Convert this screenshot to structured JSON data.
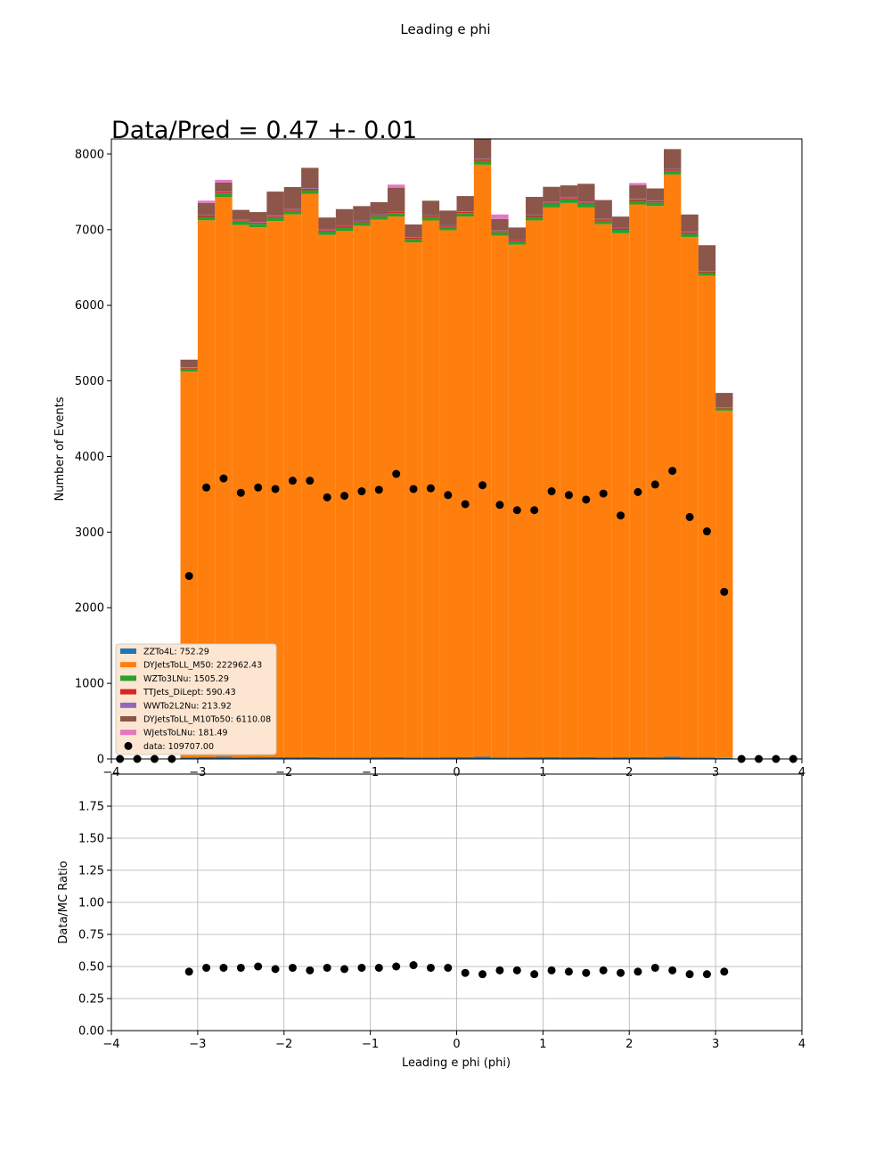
{
  "figure": {
    "suptitle": "Leading e phi",
    "annotation": "Data/Pred = 0.47 +- 0.01"
  },
  "chart_data": [
    {
      "type": "bar",
      "stacked": true,
      "ylabel": "Number of Events",
      "xlim": [
        -4,
        4
      ],
      "ylim": [
        0,
        8200
      ],
      "xticks": [
        "−4",
        "−3",
        "−2",
        "−1",
        "0",
        "1",
        "2",
        "3",
        "4"
      ],
      "yticks": [
        "0",
        "1000",
        "2000",
        "3000",
        "4000",
        "5000",
        "6000",
        "7000",
        "8000"
      ],
      "legend_position": "lower-left",
      "bin_edges": [
        -3.2,
        -3.0,
        -2.8,
        -2.6,
        -2.4,
        -2.2,
        -2.0,
        -1.8,
        -1.6,
        -1.4,
        -1.2,
        -1.0,
        -0.8,
        -0.6,
        -0.4,
        -0.2,
        0.0,
        0.2,
        0.4,
        0.6,
        0.8,
        1.0,
        1.2,
        1.4,
        1.6,
        1.8,
        2.0,
        2.2,
        2.4,
        2.6,
        2.8,
        3.0,
        3.2
      ],
      "series": [
        {
          "name": "ZZTo4L: 752.29",
          "color": "#1f77b4",
          "values": [
            22,
            24,
            30,
            22,
            23,
            24,
            23,
            24,
            22,
            22,
            22,
            23,
            24,
            22,
            22,
            23,
            24,
            30,
            22,
            22,
            23,
            24,
            23,
            24,
            22,
            23,
            24,
            23,
            30,
            22,
            22,
            15
          ]
        },
        {
          "name": "DYJetsToLL_M50: 222962.43",
          "color": "#ff7f0e",
          "values": [
            5100,
            7100,
            7400,
            7040,
            7010,
            7090,
            7180,
            7450,
            6910,
            6960,
            7030,
            7110,
            7150,
            6810,
            7100,
            6970,
            7150,
            7830,
            6900,
            6780,
            7100,
            7270,
            7330,
            7270,
            7050,
            6930,
            7310,
            7290,
            7700,
            6880,
            6370,
            4590
          ]
        },
        {
          "name": "WZTo3LNu: 1505.29",
          "color": "#2ca02c",
          "values": [
            40,
            45,
            48,
            45,
            45,
            45,
            46,
            48,
            44,
            45,
            45,
            46,
            46,
            44,
            46,
            45,
            46,
            50,
            44,
            44,
            46,
            47,
            47,
            47,
            45,
            45,
            47,
            47,
            49,
            44,
            41,
            30
          ]
        },
        {
          "name": "TTJets_DiLept: 590.43",
          "color": "#d62728",
          "values": [
            14,
            18,
            19,
            18,
            18,
            18,
            18,
            19,
            18,
            18,
            18,
            18,
            19,
            17,
            18,
            18,
            18,
            20,
            18,
            17,
            18,
            19,
            19,
            19,
            18,
            18,
            19,
            19,
            20,
            18,
            16,
            12
          ]
        },
        {
          "name": "WWTo2L2Nu: 213.92",
          "color": "#9467bd",
          "values": [
            5,
            7,
            7,
            7,
            7,
            7,
            7,
            7,
            7,
            7,
            7,
            7,
            7,
            6,
            7,
            7,
            7,
            7,
            7,
            6,
            7,
            7,
            7,
            7,
            7,
            7,
            7,
            7,
            7,
            7,
            6,
            4
          ]
        },
        {
          "name": "DYJetsToLL_M10To50: 6110.08",
          "color": "#8c564b",
          "values": [
            100,
            160,
            120,
            130,
            130,
            320,
            290,
            270,
            160,
            220,
            190,
            160,
            310,
            170,
            190,
            190,
            200,
            270,
            150,
            160,
            240,
            200,
            160,
            240,
            250,
            150,
            180,
            160,
            260,
            230,
            340,
            190
          ]
        },
        {
          "name": "WJetsToLNu: 181.49",
          "color": "#e377c2",
          "values": [
            0,
            30,
            35,
            0,
            0,
            0,
            0,
            0,
            0,
            0,
            0,
            0,
            40,
            0,
            0,
            0,
            0,
            0,
            60,
            0,
            0,
            0,
            0,
            0,
            0,
            0,
            30,
            0,
            0,
            0,
            0,
            0
          ]
        }
      ],
      "data_series": {
        "name": "data: 109707.00",
        "color": "#000000",
        "x": [
          -3.9,
          -3.7,
          -3.5,
          -3.3,
          -3.1,
          -2.9,
          -2.7,
          -2.5,
          -2.3,
          -2.1,
          -1.9,
          -1.7,
          -1.5,
          -1.3,
          -1.1,
          -0.9,
          -0.7,
          -0.5,
          -0.3,
          -0.1,
          0.1,
          0.3,
          0.5,
          0.7,
          0.9,
          1.1,
          1.3,
          1.5,
          1.7,
          1.9,
          2.1,
          2.3,
          2.5,
          2.7,
          2.9,
          3.1,
          3.3,
          3.5,
          3.7,
          3.9
        ],
        "y": [
          0,
          0,
          0,
          0,
          2420,
          3590,
          3710,
          3520,
          3590,
          3570,
          3680,
          3680,
          3460,
          3480,
          3540,
          3560,
          3770,
          3570,
          3580,
          3490,
          3370,
          3620,
          3360,
          3290,
          3290,
          3540,
          3490,
          3430,
          3510,
          3220,
          3530,
          3630,
          3810,
          3200,
          3010,
          2210,
          0,
          0,
          0,
          0
        ]
      }
    },
    {
      "type": "scatter",
      "xlabel": "Leading e phi (phi)",
      "ylabel": "Data/MC Ratio",
      "xlim": [
        -4,
        4
      ],
      "ylim": [
        0,
        2
      ],
      "grid": true,
      "xticks": [
        "−4",
        "−3",
        "−2",
        "−1",
        "0",
        "1",
        "2",
        "3",
        "4"
      ],
      "yticks": [
        "0.00",
        "0.25",
        "0.50",
        "0.75",
        "1.00",
        "1.25",
        "1.50",
        "1.75"
      ],
      "x": [
        -3.1,
        -2.9,
        -2.7,
        -2.5,
        -2.3,
        -2.1,
        -1.9,
        -1.7,
        -1.5,
        -1.3,
        -1.1,
        -0.9,
        -0.7,
        -0.5,
        -0.3,
        -0.1,
        0.1,
        0.3,
        0.5,
        0.7,
        0.9,
        1.1,
        1.3,
        1.5,
        1.7,
        1.9,
        2.1,
        2.3,
        2.5,
        2.7,
        2.9,
        3.1
      ],
      "y": [
        0.46,
        0.49,
        0.49,
        0.49,
        0.5,
        0.48,
        0.49,
        0.47,
        0.49,
        0.48,
        0.49,
        0.49,
        0.5,
        0.51,
        0.49,
        0.49,
        0.45,
        0.44,
        0.47,
        0.47,
        0.44,
        0.47,
        0.46,
        0.45,
        0.47,
        0.45,
        0.46,
        0.49,
        0.47,
        0.44,
        0.44,
        0.46
      ]
    }
  ]
}
